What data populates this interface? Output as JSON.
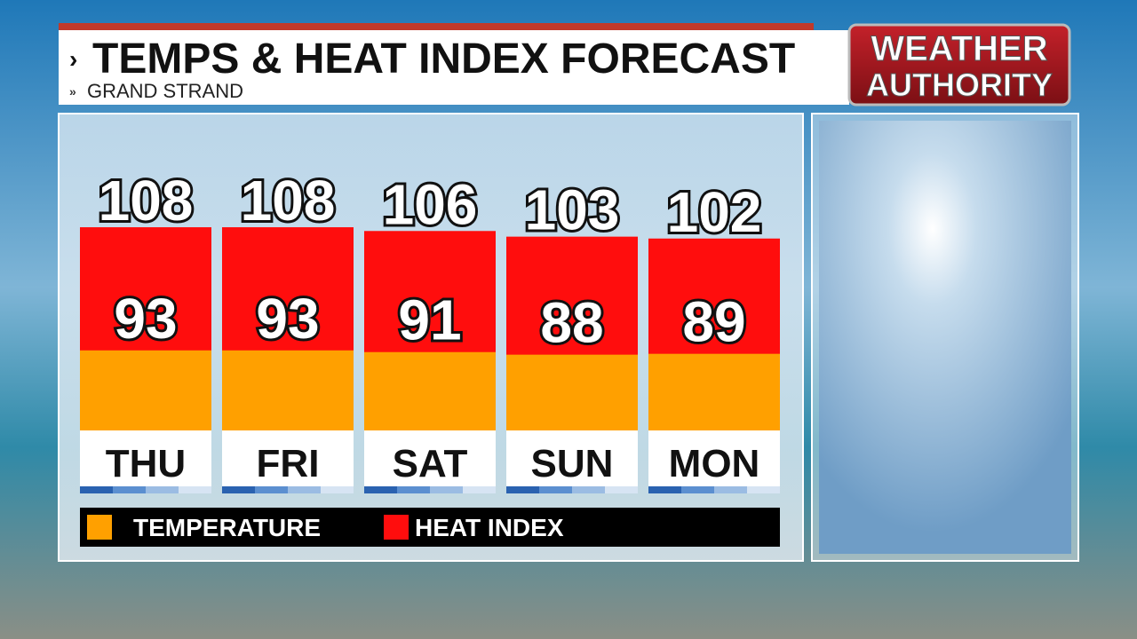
{
  "header": {
    "title": "TEMPS & HEAT INDEX FORECAST",
    "subtitle": "GRAND STRAND",
    "logo": [
      "WEATHER",
      "AUTHORITY"
    ]
  },
  "chart_data": {
    "type": "bar",
    "categories": [
      "THU",
      "FRI",
      "SAT",
      "SUN",
      "MON"
    ],
    "series": [
      {
        "name": "TEMPERATURE",
        "color": "#ffa000",
        "values": [
          93,
          93,
          91,
          88,
          89
        ]
      },
      {
        "name": "HEAT INDEX",
        "color": "#ff0d0d",
        "values": [
          108,
          108,
          106,
          103,
          102
        ]
      }
    ]
  }
}
